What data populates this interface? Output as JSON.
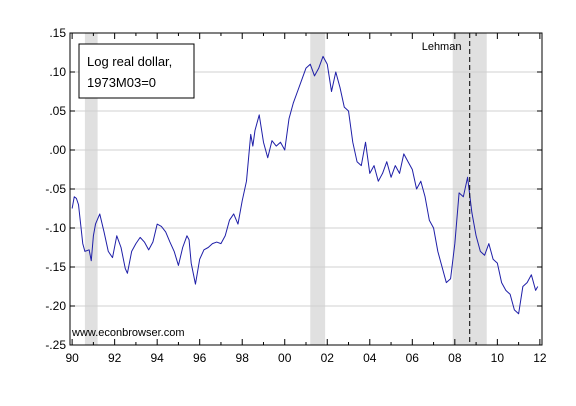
{
  "chart_data": {
    "type": "line",
    "legend_text": [
      "Log real dollar,",
      "1973M03=0"
    ],
    "annotation": "Lehman",
    "watermark": "www.econbrowser.com",
    "xlim": [
      1989.9,
      2012.1
    ],
    "ylim": [
      -0.25,
      0.15
    ],
    "y_ticks": [
      0.15,
      0.1,
      0.05,
      0.0,
      -0.05,
      -0.1,
      -0.15,
      -0.2,
      -0.25
    ],
    "y_tick_labels": [
      ".15",
      ".10",
      ".05",
      ".00",
      "-.05",
      "-.10",
      "-.15",
      "-.20",
      "-.25"
    ],
    "x_ticks": [
      1990,
      1992,
      1994,
      1996,
      1998,
      2000,
      2002,
      2004,
      2006,
      2008,
      2010,
      2012
    ],
    "x_tick_labels": [
      "90",
      "92",
      "94",
      "96",
      "98",
      "00",
      "02",
      "04",
      "06",
      "08",
      "10",
      "12"
    ],
    "grid": true,
    "legend_position": "top-left",
    "recessions": [
      [
        1990.6,
        1991.2
      ],
      [
        2001.2,
        2001.9
      ],
      [
        2007.9,
        2009.5
      ]
    ],
    "event_line_x": 2008.7,
    "colors": {
      "line": "#1f1fa8",
      "recession": "#e0e0e0",
      "grid": "#d0d0d0",
      "event_line": "#000000"
    },
    "series": [
      {
        "x": [
          1990.0,
          1990.1,
          1990.2,
          1990.3,
          1990.4,
          1990.5,
          1990.6,
          1990.8,
          1990.9,
          1991.0,
          1991.1,
          1991.3,
          1991.5,
          1991.7,
          1991.9,
          1992.1,
          1992.3,
          1992.5,
          1992.6,
          1992.8,
          1993.0,
          1993.2,
          1993.4,
          1993.6,
          1993.8,
          1994.0,
          1994.2,
          1994.4,
          1994.6,
          1994.8,
          1995.0,
          1995.2,
          1995.4,
          1995.5,
          1995.6,
          1995.8,
          1996.0,
          1996.2,
          1996.4,
          1996.6,
          1996.8,
          1997.0,
          1997.2,
          1997.4,
          1997.6,
          1997.8,
          1998.0,
          1998.2,
          1998.4,
          1998.5,
          1998.6,
          1998.8,
          1999.0,
          1999.2,
          1999.4,
          1999.6,
          1999.8,
          2000.0,
          2000.2,
          2000.4,
          2000.6,
          2000.8,
          2001.0,
          2001.2,
          2001.4,
          2001.6,
          2001.8,
          2002.0,
          2002.2,
          2002.4,
          2002.6,
          2002.8,
          2003.0,
          2003.2,
          2003.4,
          2003.6,
          2003.8,
          2004.0,
          2004.2,
          2004.4,
          2004.6,
          2004.8,
          2005.0,
          2005.2,
          2005.4,
          2005.6,
          2005.8,
          2006.0,
          2006.2,
          2006.4,
          2006.6,
          2006.8,
          2007.0,
          2007.2,
          2007.4,
          2007.6,
          2007.8,
          2008.0,
          2008.2,
          2008.4,
          2008.6,
          2008.8,
          2009.0,
          2009.2,
          2009.4,
          2009.6,
          2009.8,
          2010.0,
          2010.2,
          2010.4,
          2010.6,
          2010.8,
          2011.0,
          2011.2,
          2011.4,
          2011.6,
          2011.8,
          2011.9
        ],
        "y": [
          -0.075,
          -0.06,
          -0.062,
          -0.07,
          -0.095,
          -0.12,
          -0.13,
          -0.128,
          -0.142,
          -0.11,
          -0.095,
          -0.082,
          -0.105,
          -0.13,
          -0.138,
          -0.11,
          -0.125,
          -0.152,
          -0.158,
          -0.13,
          -0.12,
          -0.112,
          -0.118,
          -0.128,
          -0.118,
          -0.095,
          -0.098,
          -0.105,
          -0.118,
          -0.13,
          -0.148,
          -0.125,
          -0.11,
          -0.115,
          -0.145,
          -0.172,
          -0.14,
          -0.128,
          -0.125,
          -0.12,
          -0.118,
          -0.12,
          -0.11,
          -0.09,
          -0.082,
          -0.095,
          -0.065,
          -0.04,
          0.02,
          0.005,
          0.025,
          0.045,
          0.01,
          -0.01,
          0.012,
          0.005,
          0.01,
          0.0,
          0.04,
          0.06,
          0.075,
          0.09,
          0.105,
          0.11,
          0.095,
          0.105,
          0.12,
          0.11,
          0.075,
          0.1,
          0.08,
          0.055,
          0.05,
          0.01,
          -0.015,
          -0.02,
          0.01,
          -0.03,
          -0.02,
          -0.04,
          -0.03,
          -0.015,
          -0.035,
          -0.02,
          -0.03,
          -0.005,
          -0.015,
          -0.025,
          -0.05,
          -0.04,
          -0.06,
          -0.09,
          -0.1,
          -0.13,
          -0.15,
          -0.17,
          -0.165,
          -0.12,
          -0.055,
          -0.06,
          -0.035,
          -0.08,
          -0.11,
          -0.13,
          -0.135,
          -0.12,
          -0.14,
          -0.145,
          -0.17,
          -0.18,
          -0.185,
          -0.205,
          -0.21,
          -0.175,
          -0.17,
          -0.16,
          -0.18,
          -0.175
        ]
      }
    ]
  }
}
